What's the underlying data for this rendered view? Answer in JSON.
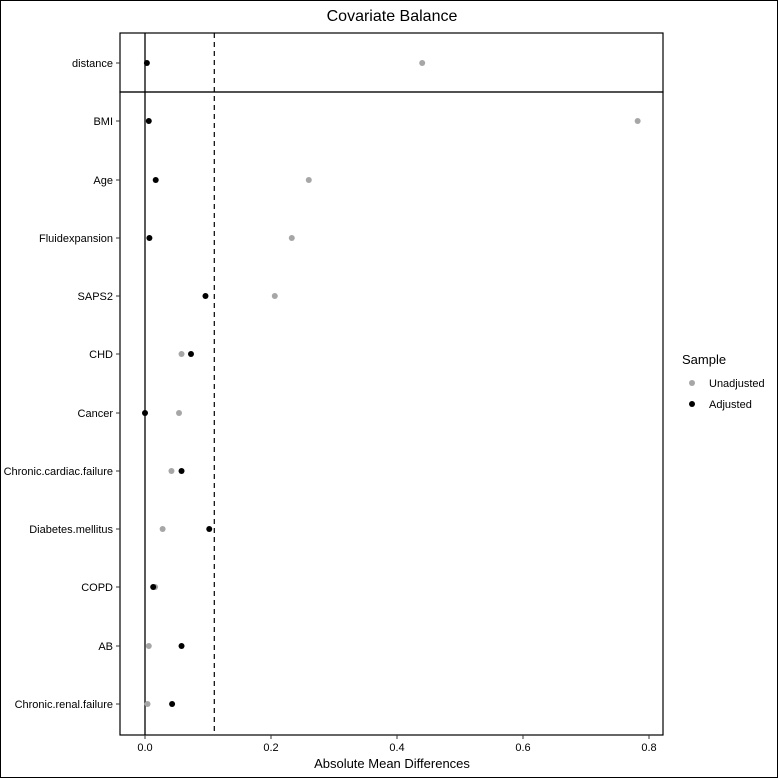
{
  "chart_data": {
    "type": "scatter",
    "title": "Covariate Balance",
    "xlabel": "Absolute Mean Differences",
    "ylabel": "",
    "xlim": [
      -0.04,
      0.81
    ],
    "xticks": [
      "0.0",
      "0.2",
      "0.4",
      "0.6",
      "0.8"
    ],
    "threshold": 0.11,
    "grid": false,
    "legend": {
      "title": "Sample",
      "position": "right",
      "entries": [
        {
          "name": "Unadjusted",
          "color": "#a6a6a6"
        },
        {
          "name": "Adjusted",
          "color": "#000000"
        }
      ]
    },
    "categories": [
      "distance",
      "BMI",
      "Age",
      "Fluidexpansion",
      "SAPS2",
      "CHD",
      "Cancer",
      "Chronic.cardiac.failure",
      "Diabetes.mellitus",
      "COPD",
      "AB",
      "Chronic.renal.failure"
    ],
    "series": [
      {
        "name": "Unadjusted",
        "color": "#a6a6a6",
        "values": [
          0.44,
          0.782,
          0.26,
          0.233,
          0.206,
          0.058,
          0.054,
          0.042,
          0.028,
          0.016,
          0.006,
          0.004
        ]
      },
      {
        "name": "Adjusted",
        "color": "#000000",
        "values": [
          0.003,
          0.006,
          0.017,
          0.007,
          0.096,
          0.073,
          0.0,
          0.058,
          0.102,
          0.013,
          0.058,
          0.043
        ]
      }
    ]
  }
}
